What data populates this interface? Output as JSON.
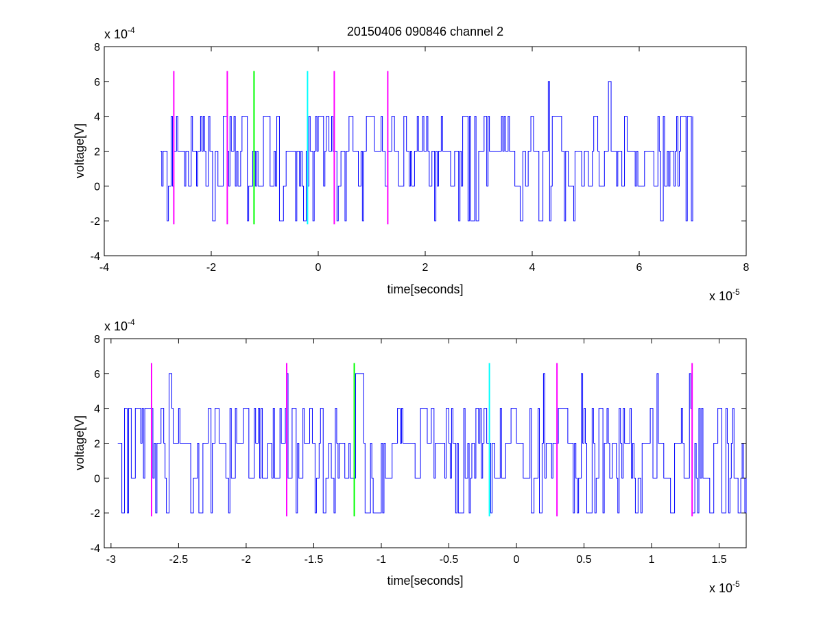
{
  "figure": {
    "title": "20150406 090846 channel 2"
  },
  "chart_data": [
    {
      "type": "line",
      "title": "20150406 090846 channel 2",
      "xlabel": "time[seconds]",
      "ylabel": "voltage[V]",
      "x_exponent": {
        "base": "x 10",
        "power": "-5"
      },
      "y_exponent": {
        "base": "x 10",
        "power": "-4"
      },
      "xlim": [
        -4,
        8
      ],
      "ylim": [
        -4,
        8
      ],
      "x_ticks": [
        "-4",
        "-2",
        "0",
        "2",
        "4",
        "6",
        "8"
      ],
      "y_ticks": [
        "-4",
        "-2",
        "0",
        "2",
        "4",
        "6",
        "8"
      ],
      "grid": false,
      "signal": {
        "color": "#0000ff",
        "x_range": [
          -2.95,
          7.0
        ],
        "levels": [
          -2,
          0,
          2,
          4,
          6
        ],
        "samples_per_unit": 40,
        "seed": 7
      },
      "markers": [
        {
          "x": -2.7,
          "color": "#ff00ff",
          "ymin": -2.2,
          "ymax": 6.6
        },
        {
          "x": -1.7,
          "color": "#ff00ff",
          "ymin": -2.2,
          "ymax": 6.6
        },
        {
          "x": -1.2,
          "color": "#00ff00",
          "ymin": -2.2,
          "ymax": 6.6
        },
        {
          "x": -0.2,
          "color": "#00ffff",
          "ymin": -2.2,
          "ymax": 6.6
        },
        {
          "x": 0.3,
          "color": "#ff00ff",
          "ymin": -2.2,
          "ymax": 6.6
        },
        {
          "x": 1.3,
          "color": "#ff00ff",
          "ymin": -2.2,
          "ymax": 6.6
        }
      ]
    },
    {
      "type": "line",
      "title": "",
      "xlabel": "time[seconds]",
      "ylabel": "voltage[V]",
      "x_exponent": {
        "base": "x 10",
        "power": "-5"
      },
      "y_exponent": {
        "base": "x 10",
        "power": "-4"
      },
      "xlim": [
        -3.05,
        1.7
      ],
      "ylim": [
        -4,
        8
      ],
      "x_ticks": [
        "-3",
        "-2.5",
        "-2",
        "-1.5",
        "-1",
        "-0.5",
        "0",
        "0.5",
        "1",
        "1.5"
      ],
      "x_tick_values": [
        -3,
        -2.5,
        -2,
        -1.5,
        -1,
        -0.5,
        0,
        0.5,
        1,
        1.5
      ],
      "y_ticks": [
        "-4",
        "-2",
        "0",
        "2",
        "4",
        "6",
        "8"
      ],
      "grid": false,
      "signal": {
        "color": "#0000ff",
        "x_range": [
          -2.95,
          1.7
        ],
        "levels": [
          -2,
          0,
          2,
          4,
          6
        ],
        "samples_per_unit": 100,
        "seed": 13
      },
      "markers": [
        {
          "x": -2.7,
          "color": "#ff00ff",
          "ymin": -2.2,
          "ymax": 6.6
        },
        {
          "x": -1.7,
          "color": "#ff00ff",
          "ymin": -2.2,
          "ymax": 6.6
        },
        {
          "x": -1.2,
          "color": "#00ff00",
          "ymin": -2.2,
          "ymax": 6.6
        },
        {
          "x": -0.2,
          "color": "#00ffff",
          "ymin": -2.2,
          "ymax": 6.6
        },
        {
          "x": 0.3,
          "color": "#ff00ff",
          "ymin": -2.2,
          "ymax": 6.6
        },
        {
          "x": 1.3,
          "color": "#ff00ff",
          "ymin": -2.2,
          "ymax": 6.6
        }
      ]
    }
  ]
}
